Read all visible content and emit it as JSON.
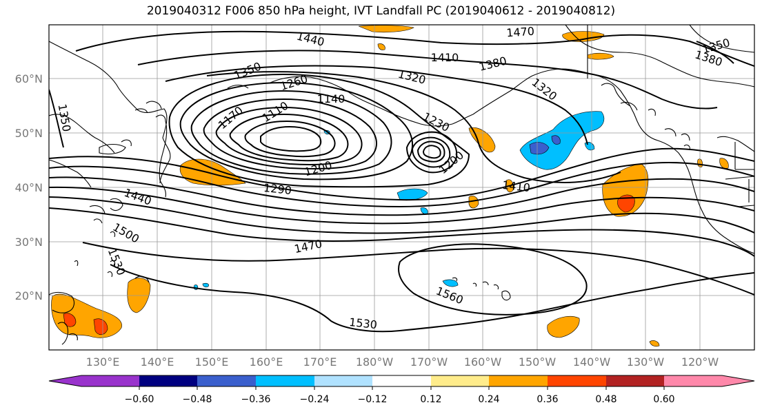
{
  "title": "2019040312 F006 850 hPa height, IVT Landfall PC (2019040612 - 2019040812)",
  "map": {
    "lat_ticks": [
      "60°N",
      "50°N",
      "40°N",
      "30°N",
      "20°N"
    ],
    "lon_ticks": [
      "130°E",
      "140°E",
      "150°E",
      "160°E",
      "170°E",
      "180°W",
      "170°W",
      "160°W",
      "150°W",
      "140°W",
      "130°W",
      "120°W"
    ],
    "contour_labels": [
      "1440",
      "1470",
      "1410",
      "1380",
      "1350",
      "1350",
      "1380",
      "1320",
      "1320",
      "1260",
      "1140",
      "1170",
      "1110",
      "1350",
      "1230",
      "1200",
      "1200",
      "1290",
      "1410",
      "1440",
      "1500",
      "1470",
      "1530",
      "1560",
      "1530"
    ],
    "colors": {
      "height_contour": "#000000",
      "coastline": "#000000",
      "grid": "#999999"
    }
  },
  "colorbar": {
    "tick_labels": [
      "−0.60",
      "−0.48",
      "−0.36",
      "−0.24",
      "−0.12",
      "0.12",
      "0.24",
      "0.36",
      "0.48",
      "0.60"
    ],
    "colors": [
      "#9933cc",
      "#000080",
      "#3a5fcd",
      "#00bfff",
      "#b0e2ff",
      "#ffffff",
      "#ffec8b",
      "#ffa500",
      "#ff4500",
      "#b22222",
      "#ff88aa"
    ]
  }
}
